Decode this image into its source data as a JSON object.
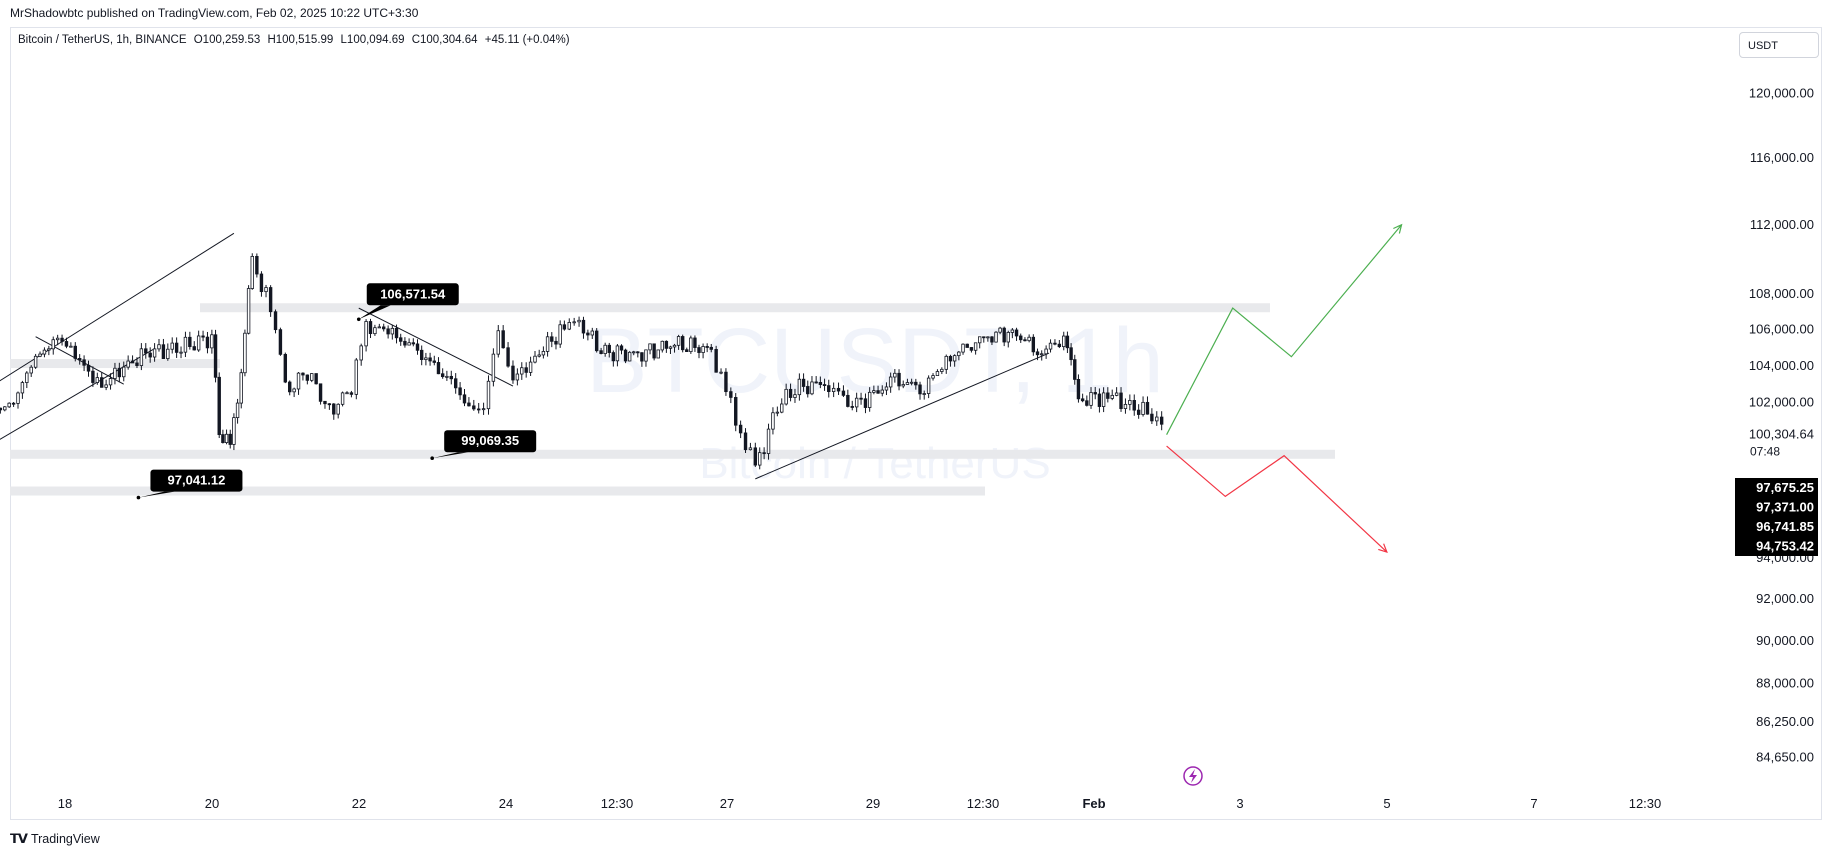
{
  "header": {
    "published_by": "MrShadowbtc published on TradingView.com, Feb 02, 2025 10:22 UTC+3:30"
  },
  "legend": {
    "symbol": "Bitcoin / TetherUS, 1h, BINANCE",
    "open": "O100,259.53",
    "high": "H100,515.99",
    "low": "L100,094.69",
    "close": "C100,304.64",
    "change": "+45.11 (+0.04%)"
  },
  "currency_button": "USDT",
  "watermark": {
    "ticker": "BTCUSDT, 1h",
    "name": "Bitcoin / TetherUS"
  },
  "footer": {
    "brand": "TradingView"
  },
  "chart_data": {
    "type": "candlestick",
    "title": "Bitcoin / TetherUS, 1h, BINANCE",
    "y_axis": {
      "scale": "log",
      "ticks": [
        "120,000.00",
        "116,000.00",
        "112,000.00",
        "108,000.00",
        "106,000.00",
        "104,000.00",
        "102,000.00",
        "94,000.00",
        "92,000.00",
        "90,000.00",
        "88,000.00",
        "86,250.00",
        "84,650.00"
      ],
      "tick_values": [
        120000,
        116000,
        112000,
        108000,
        106000,
        104000,
        102000,
        94000,
        92000,
        90000,
        88000,
        86250,
        84650
      ]
    },
    "x_axis": {
      "ticks": [
        "18",
        "20",
        "22",
        "24",
        "12:30",
        "27",
        "29",
        "12:30",
        "Feb",
        "3",
        "5",
        "7",
        "12:30"
      ]
    },
    "current_price": {
      "value": "100,304.64",
      "countdown": "07:48"
    },
    "price_labels": [
      "97,675.25",
      "97,371.00",
      "96,741.85",
      "94,753.42"
    ],
    "annotations": [
      {
        "text": "106,571.54",
        "date": "Jan 22",
        "price": 106571.54
      },
      {
        "text": "99,069.35",
        "date": "Jan 23",
        "price": 99069.35
      },
      {
        "text": "97,041.12",
        "date": "Jan 19",
        "price": 97041.12
      }
    ],
    "price_path": [
      [
        "Jan 17",
        101400
      ],
      [
        "Jan 17.3",
        102200
      ],
      [
        "Jan 17.6",
        104300
      ],
      [
        "Jan 17.9",
        105700
      ],
      [
        "Jan 18.2",
        104200
      ],
      [
        "Jan 18.5",
        102900
      ],
      [
        "Jan 18.8",
        103900
      ],
      [
        "Jan 19.1",
        104700
      ],
      [
        "Jan 19.4",
        104900
      ],
      [
        "Jan 19.7",
        105100
      ],
      [
        "Jan 20",
        105600
      ],
      [
        "Jan 20.1",
        100500
      ],
      [
        "Jan 20.25",
        99500
      ],
      [
        "Jan 20.4",
        104000
      ],
      [
        "Jan 20.55",
        109700
      ],
      [
        "Jan 20.8",
        107500
      ],
      [
        "Jan 21.0",
        102600
      ],
      [
        "Jan 21.3",
        103700
      ],
      [
        "Jan 21.6",
        101500
      ],
      [
        "Jan 21.9",
        102800
      ],
      [
        "Jan 22.1",
        106200
      ],
      [
        "Jan 22.4",
        105900
      ],
      [
        "Jan 22.8",
        104800
      ],
      [
        "Jan 23.2",
        103400
      ],
      [
        "Jan 23.5",
        101900
      ],
      [
        "Jan 23.7",
        101600
      ],
      [
        "Jan 23.9",
        106000
      ],
      [
        "Jan 24.1",
        103200
      ],
      [
        "Jan 24.4",
        104500
      ],
      [
        "Jan 24.8",
        106100
      ],
      [
        "Jan 25.0",
        106400
      ],
      [
        "Jan 25.3",
        104800
      ],
      [
        "Jan 25.8",
        104600
      ],
      [
        "Jan 26.3",
        105200
      ],
      [
        "Jan 26.8",
        104900
      ],
      [
        "Jan 27.0",
        102500
      ],
      [
        "Jan 27.2",
        100600
      ],
      [
        "Jan 27.4",
        98400
      ],
      [
        "Jan 27.7",
        101900
      ],
      [
        "Jan 28.0",
        102800
      ],
      [
        "Jan 28.4",
        103100
      ],
      [
        "Jan 28.6",
        101900
      ],
      [
        "Jan 28.9",
        102200
      ],
      [
        "Jan 29.3",
        103200
      ],
      [
        "Jan 29.7",
        102800
      ],
      [
        "Jan 30.0",
        104300
      ],
      [
        "Jan 30.4",
        105400
      ],
      [
        "Jan 30.9",
        105900
      ],
      [
        "Jan 31.3",
        104700
      ],
      [
        "Jan 31.6",
        105600
      ],
      [
        "Jan 31.7",
        104400
      ],
      [
        "Jan 31.8",
        102100
      ],
      [
        "Feb 1.2",
        102400
      ],
      [
        "Feb 1.5",
        101900
      ],
      [
        "Feb 1.8",
        101300
      ],
      [
        "Feb 2.0",
        100300
      ]
    ],
    "projections": [
      {
        "name": "bullish",
        "color": "#4caf50",
        "points": [
          [
            "Feb 2",
            100300
          ],
          [
            "Feb 2.9",
            107200
          ],
          [
            "Feb 3.7",
            104500
          ],
          [
            "Feb 5.2",
            112000
          ]
        ]
      },
      {
        "name": "bearish",
        "color": "#f23645",
        "points": [
          [
            "Feb 2",
            99700
          ],
          [
            "Feb 2.8",
            97100
          ],
          [
            "Feb 3.6",
            99200
          ],
          [
            "Feb 5",
            94300
          ]
        ]
      }
    ],
    "colors": {
      "candle": "#131722",
      "bull_projection": "#4caf50",
      "bear_projection": "#f23645"
    }
  }
}
